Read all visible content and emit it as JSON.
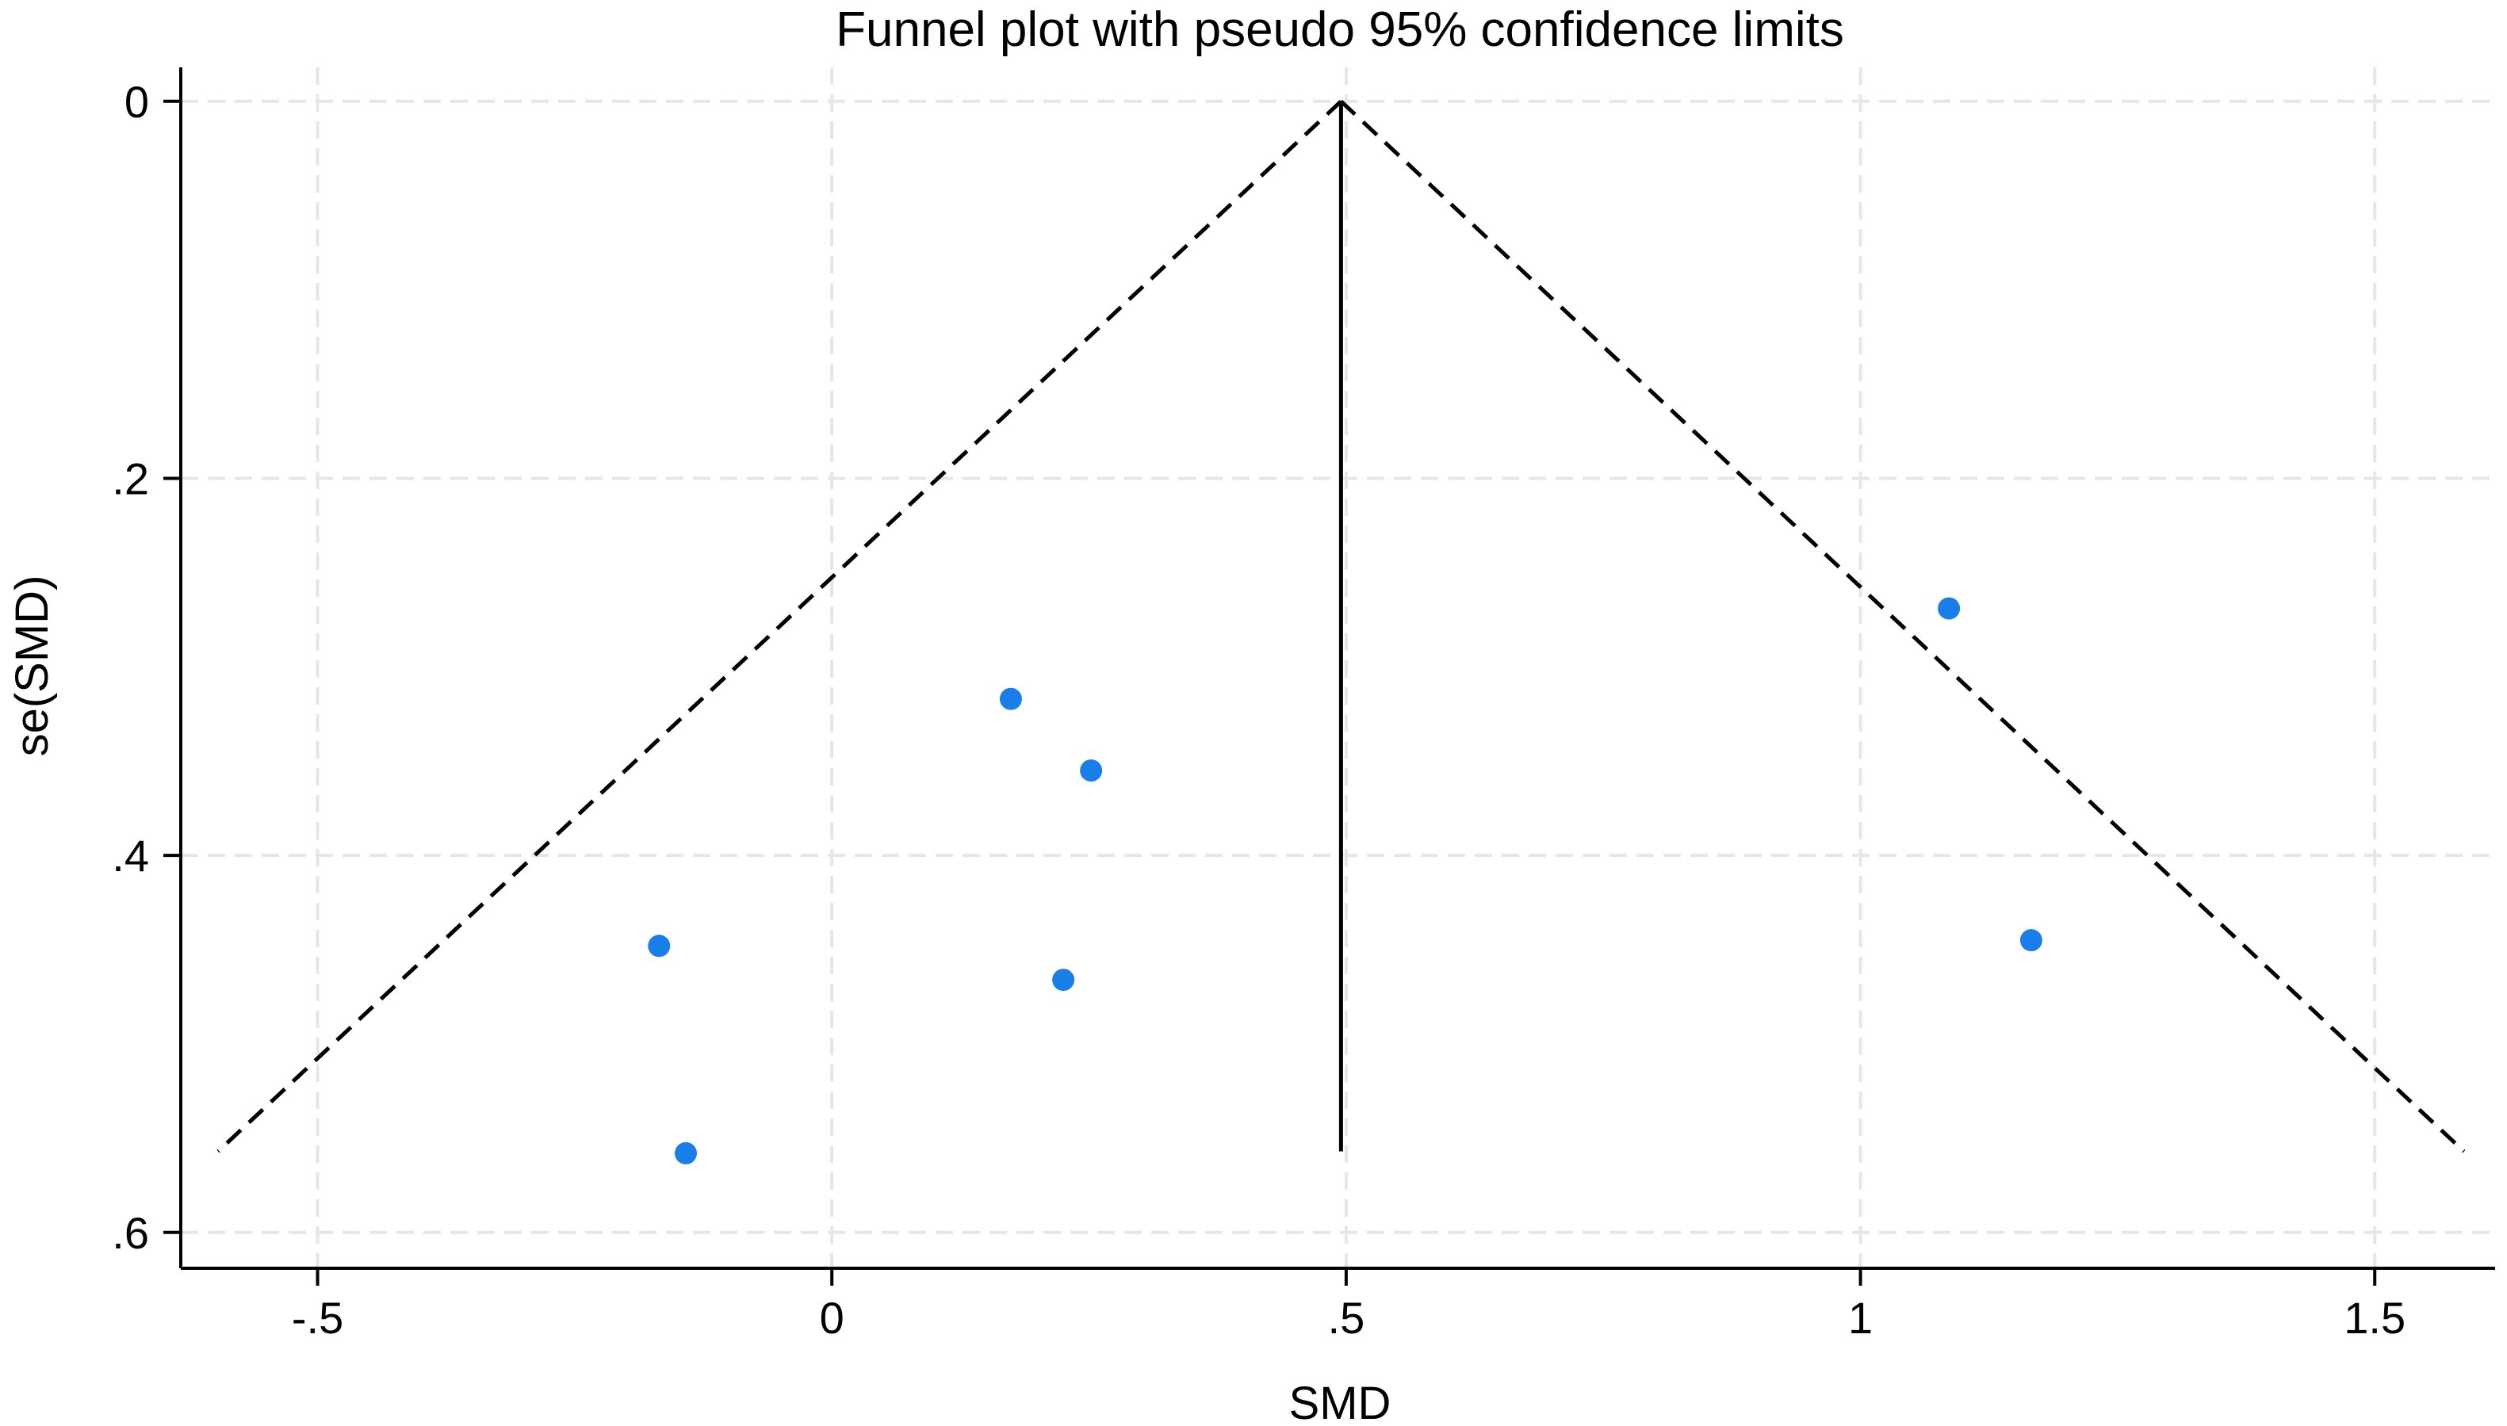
{
  "chart_data": {
    "type": "scatter",
    "title": "Funnel plot with pseudo 95% confidence limits",
    "xlabel": "SMD",
    "ylabel": "se(SMD)",
    "xlim": [
      -0.633,
      1.617
    ],
    "ylim": [
      0.619,
      -0.018
    ],
    "y_reversed": true,
    "grid": true,
    "xticks": [
      -0.5,
      0,
      0.5,
      1,
      1.5
    ],
    "xtick_labels": [
      "-.5",
      "0",
      ".5",
      "1",
      "1.5"
    ],
    "yticks": [
      0,
      0.2,
      0.4,
      0.6
    ],
    "ytick_labels": [
      "0",
      ".2",
      ".4",
      ".6"
    ],
    "pooled_effect": 0.495,
    "max_se": 0.557,
    "z": 1.96,
    "points": [
      {
        "x": 1.086,
        "y": 0.269
      },
      {
        "x": 0.174,
        "y": 0.317
      },
      {
        "x": 0.252,
        "y": 0.355
      },
      {
        "x": -0.168,
        "y": 0.448
      },
      {
        "x": 0.225,
        "y": 0.466
      },
      {
        "x": 1.166,
        "y": 0.445
      },
      {
        "x": -0.142,
        "y": 0.558
      }
    ],
    "colors": {
      "points": "#1a7ee8",
      "lines": "#000000",
      "grid": "#e6e6e6"
    }
  }
}
